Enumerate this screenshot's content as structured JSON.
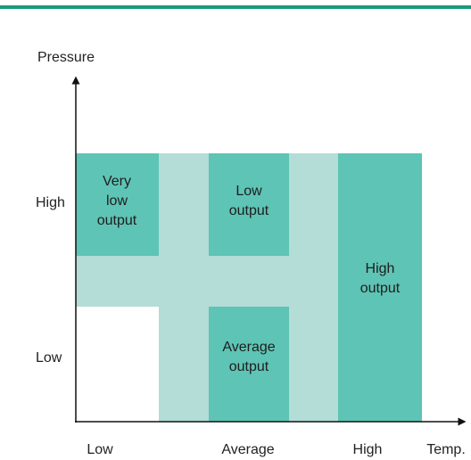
{
  "axes": {
    "y_title": "Pressure",
    "y_labels": [
      "High",
      "Low"
    ],
    "x_labels": [
      "Low",
      "Average",
      "High"
    ],
    "x_title": "Temp."
  },
  "cells": [
    {
      "label": [
        "Very",
        "low",
        "output"
      ]
    },
    {
      "label": [
        "Low",
        "output"
      ]
    },
    {
      "label": [
        "Average",
        "output"
      ]
    },
    {
      "label": [
        "High",
        "output"
      ]
    }
  ]
}
